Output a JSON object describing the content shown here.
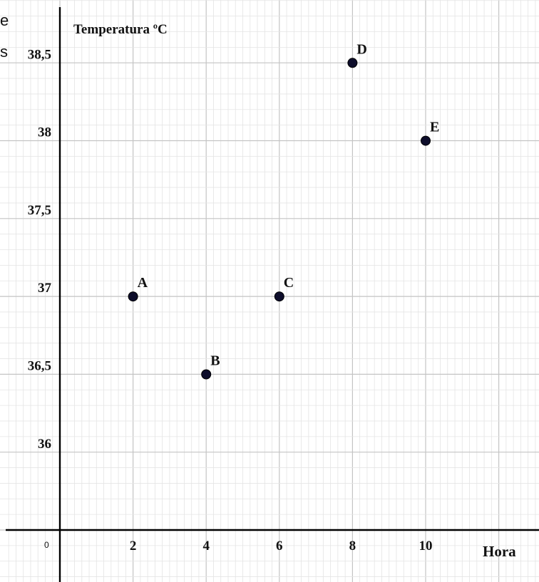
{
  "chart_data": {
    "type": "scatter",
    "ylabel": "Temperatura ºC",
    "xlabel": "Hora",
    "origin_label": "0",
    "x_ticks": [
      {
        "value": 2,
        "label": "2"
      },
      {
        "value": 4,
        "label": "4"
      },
      {
        "value": 6,
        "label": "6"
      },
      {
        "value": 8,
        "label": "8"
      },
      {
        "value": 10,
        "label": "10"
      }
    ],
    "y_ticks": [
      {
        "value": 36,
        "label": "36"
      },
      {
        "value": 36.5,
        "label": "36,5"
      },
      {
        "value": 37,
        "label": "37"
      },
      {
        "value": 37.5,
        "label": "37,5"
      },
      {
        "value": 38,
        "label": "38"
      },
      {
        "value": 38.5,
        "label": "38,5"
      }
    ],
    "points": [
      {
        "label": "A",
        "x": 2,
        "y": 37
      },
      {
        "label": "B",
        "x": 4,
        "y": 36.5
      },
      {
        "label": "C",
        "x": 6,
        "y": 37
      },
      {
        "label": "D",
        "x": 8,
        "y": 38.5
      },
      {
        "label": "E",
        "x": 10,
        "y": 38
      }
    ],
    "grid": true,
    "point_color": "#0d0d2b",
    "grid_major_color": "#c4c4c4",
    "grid_minor_color": "#e4e4e4"
  },
  "clipped_text": [
    "e",
    "s"
  ]
}
